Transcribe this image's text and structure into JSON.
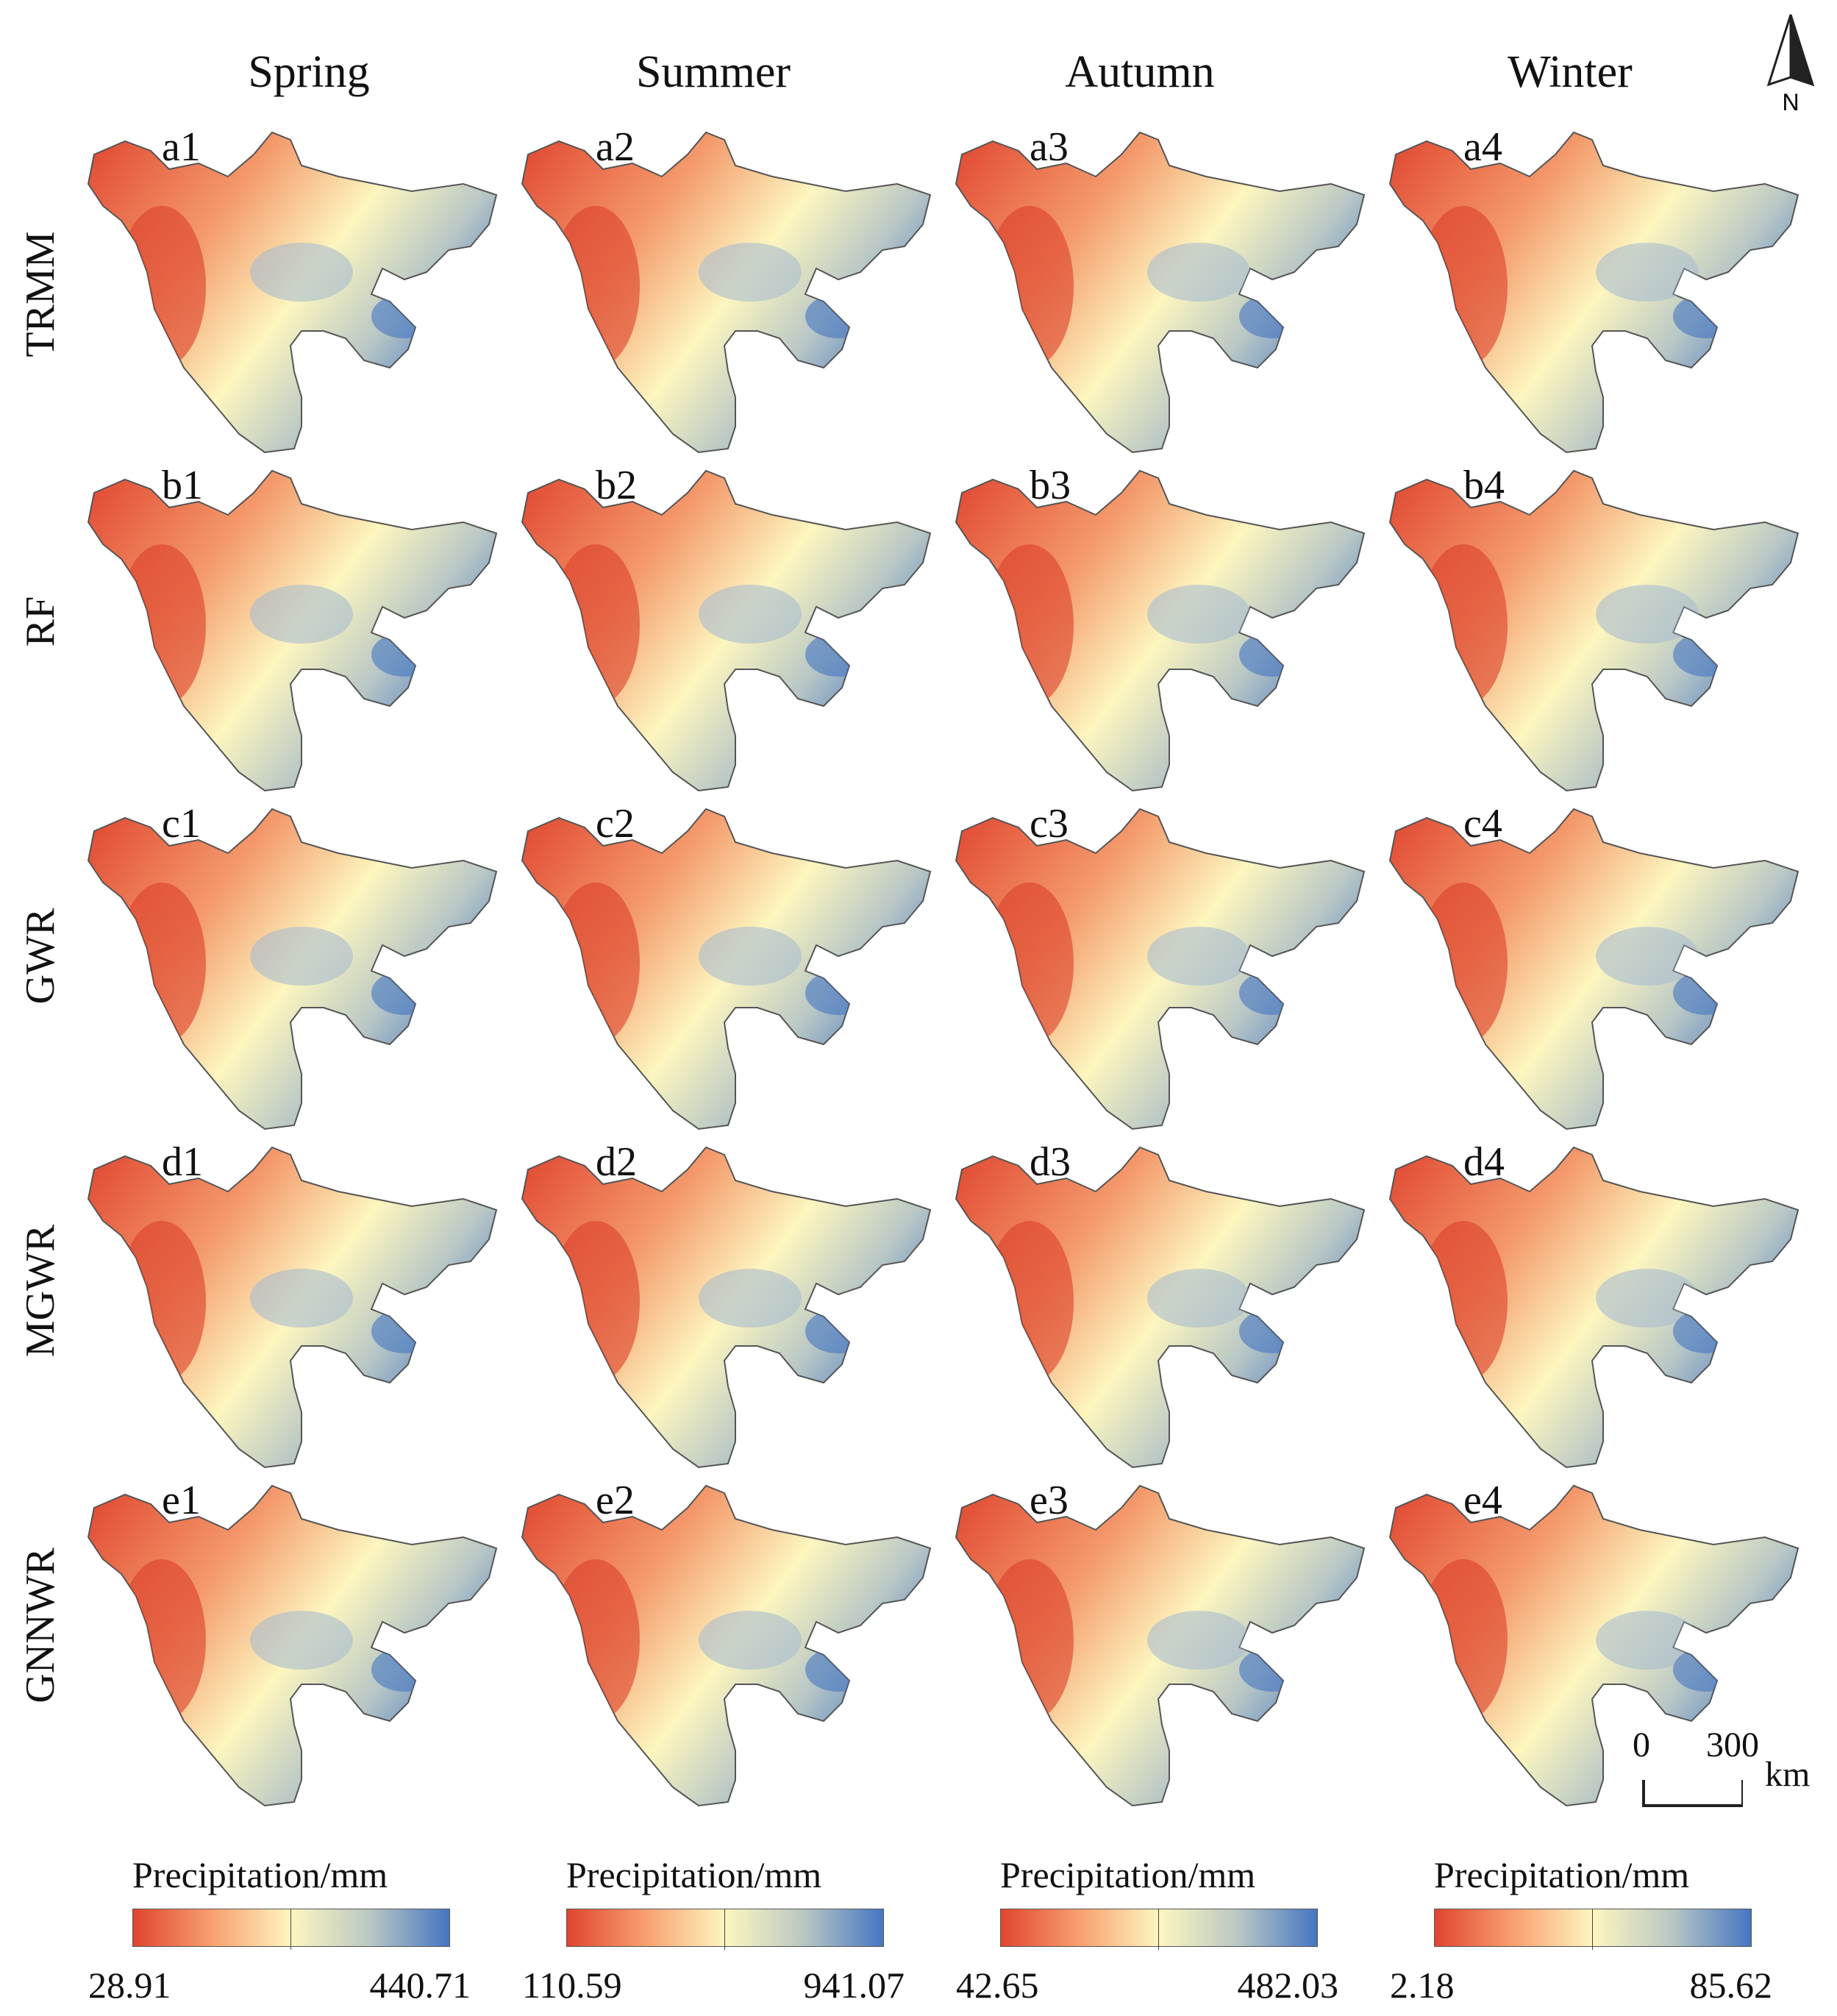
{
  "columns": [
    "Spring",
    "Summer",
    "Autumn",
    "Winter"
  ],
  "rows": [
    "TRMM",
    "RF",
    "GWR",
    "MGWR",
    "GNNWR"
  ],
  "panel_labels": [
    [
      "a1",
      "a2",
      "a3",
      "a4"
    ],
    [
      "b1",
      "b2",
      "b3",
      "b4"
    ],
    [
      "c1",
      "c2",
      "c3",
      "c4"
    ],
    [
      "d1",
      "d2",
      "d3",
      "d4"
    ],
    [
      "e1",
      "e2",
      "e3",
      "e4"
    ]
  ],
  "legends": [
    {
      "title": "Precipitation/mm",
      "min": "28.91",
      "max": "440.71"
    },
    {
      "title": "Precipitation/mm",
      "min": "110.59",
      "max": "941.07"
    },
    {
      "title": "Precipitation/mm",
      "min": "42.65",
      "max": "482.03"
    },
    {
      "title": "Precipitation/mm",
      "min": "2.18",
      "max": "85.62"
    }
  ],
  "colors": {
    "low": "#e0452f",
    "mid": "#fdf6bf",
    "high": "#4576c2"
  },
  "scale_bar": {
    "zero": "0",
    "max": "300",
    "unit": "km"
  },
  "north_arrow": {
    "label": "N",
    "icon": "north-arrow-icon"
  }
}
